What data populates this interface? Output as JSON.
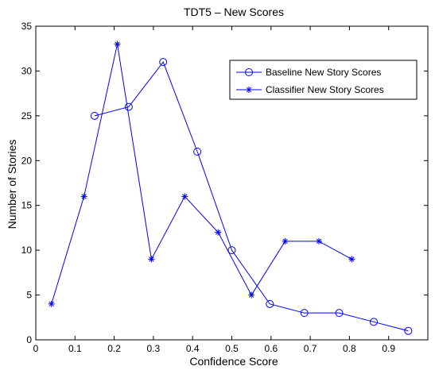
{
  "chart_data": {
    "type": "line",
    "title": "TDT5 – New Scores",
    "xlabel": "Confidence Score",
    "ylabel": "Number of Stories",
    "xlim": [
      0,
      1
    ],
    "ylim": [
      0,
      35
    ],
    "x_ticks": [
      0,
      0.1,
      0.2,
      0.3,
      0.4,
      0.5,
      0.6,
      0.7,
      0.8,
      0.9
    ],
    "x_tick_labels": [
      "0",
      "0.1",
      "0.2",
      "0.3",
      "0.4",
      "0.5",
      "0.6",
      "0.7",
      "0.8",
      "0.9"
    ],
    "y_ticks": [
      0,
      5,
      10,
      15,
      20,
      25,
      30,
      35
    ],
    "y_tick_labels": [
      "0",
      "5",
      "10",
      "15",
      "20",
      "25",
      "30",
      "35"
    ],
    "grid": false,
    "legend_position": "top-right",
    "series": [
      {
        "name": "Baseline New Story Scores",
        "marker": "circle",
        "color": "#0000ff",
        "x": [
          0.15,
          0.237,
          0.325,
          0.412,
          0.5,
          0.597,
          0.685,
          0.774,
          0.862,
          0.95
        ],
        "y": [
          25,
          26,
          31,
          21,
          10,
          4,
          3,
          3,
          2,
          1
        ]
      },
      {
        "name": "Classifier New Story Scores",
        "marker": "asterisk",
        "color": "#0000ff",
        "x": [
          0.04,
          0.123,
          0.208,
          0.295,
          0.38,
          0.465,
          0.55,
          0.636,
          0.722,
          0.806
        ],
        "y": [
          4,
          16,
          33,
          9,
          16,
          12,
          5,
          11,
          11,
          9
        ]
      }
    ]
  }
}
